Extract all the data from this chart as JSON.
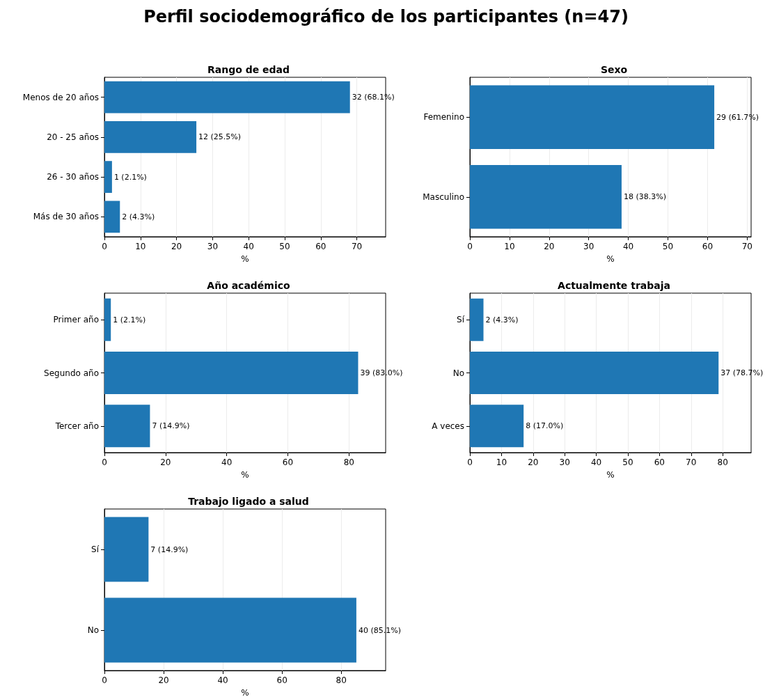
{
  "chart_data": [
    {
      "type": "bar",
      "orientation": "horizontal",
      "title": "Rango de edad",
      "xlabel": "%",
      "annotations": [
        "Perfil sociodemográfico de los participantes (n=47)"
      ],
      "categories": [
        "Menos de 20 años",
        "20 - 25 años",
        "26 - 30 años",
        "Más de 30 años"
      ],
      "values": [
        68.1,
        25.5,
        2.1,
        4.3
      ],
      "value_labels": [
        "32 (68.1%)",
        "12 (25.5%)",
        "1 (2.1%)",
        "2 (4.3%)"
      ],
      "color": "#1f77b4",
      "xlim": [
        0,
        78
      ],
      "xticks": [
        0,
        10,
        20,
        30,
        40,
        50,
        60,
        70
      ],
      "grid": "x"
    },
    {
      "type": "bar",
      "orientation": "horizontal",
      "title": "Sexo",
      "xlabel": "%",
      "categories": [
        "Femenino",
        "Masculino"
      ],
      "values": [
        61.7,
        38.3
      ],
      "value_labels": [
        "29 (61.7%)",
        "18 (38.3%)"
      ],
      "color": "#1f77b4",
      "xlim": [
        0,
        71
      ],
      "xticks": [
        0,
        10,
        20,
        30,
        40,
        50,
        60,
        70
      ],
      "grid": "x"
    },
    {
      "type": "bar",
      "orientation": "horizontal",
      "title": "Año académico",
      "xlabel": "%",
      "categories": [
        "Primer año",
        "Segundo año",
        "Tercer año"
      ],
      "values": [
        2.1,
        83.0,
        14.9
      ],
      "value_labels": [
        "1 (2.1%)",
        "39 (83.0%)",
        "7 (14.9%)"
      ],
      "color": "#1f77b4",
      "xlim": [
        0,
        92
      ],
      "xticks": [
        0,
        20,
        40,
        60,
        80
      ],
      "grid": "x"
    },
    {
      "type": "bar",
      "orientation": "horizontal",
      "title": "Actualmente trabaja",
      "xlabel": "%",
      "categories": [
        "Sí",
        "No",
        "A veces"
      ],
      "values": [
        4.3,
        78.7,
        17.0
      ],
      "value_labels": [
        "2 (4.3%)",
        "37 (78.7%)",
        "8 (17.0%)"
      ],
      "color": "#1f77b4",
      "xlim": [
        0,
        89
      ],
      "xticks": [
        0,
        10,
        20,
        30,
        40,
        50,
        60,
        70,
        80
      ],
      "grid": "x"
    },
    {
      "type": "bar",
      "orientation": "horizontal",
      "title": "Trabajo ligado a salud",
      "xlabel": "%",
      "categories": [
        "Sí",
        "No"
      ],
      "values": [
        14.9,
        85.1
      ],
      "value_labels": [
        "7 (14.9%)",
        "40 (85.1%)"
      ],
      "color": "#1f77b4",
      "xlim": [
        0,
        95
      ],
      "xticks": [
        0,
        20,
        40,
        60,
        80
      ],
      "grid": "x"
    }
  ]
}
